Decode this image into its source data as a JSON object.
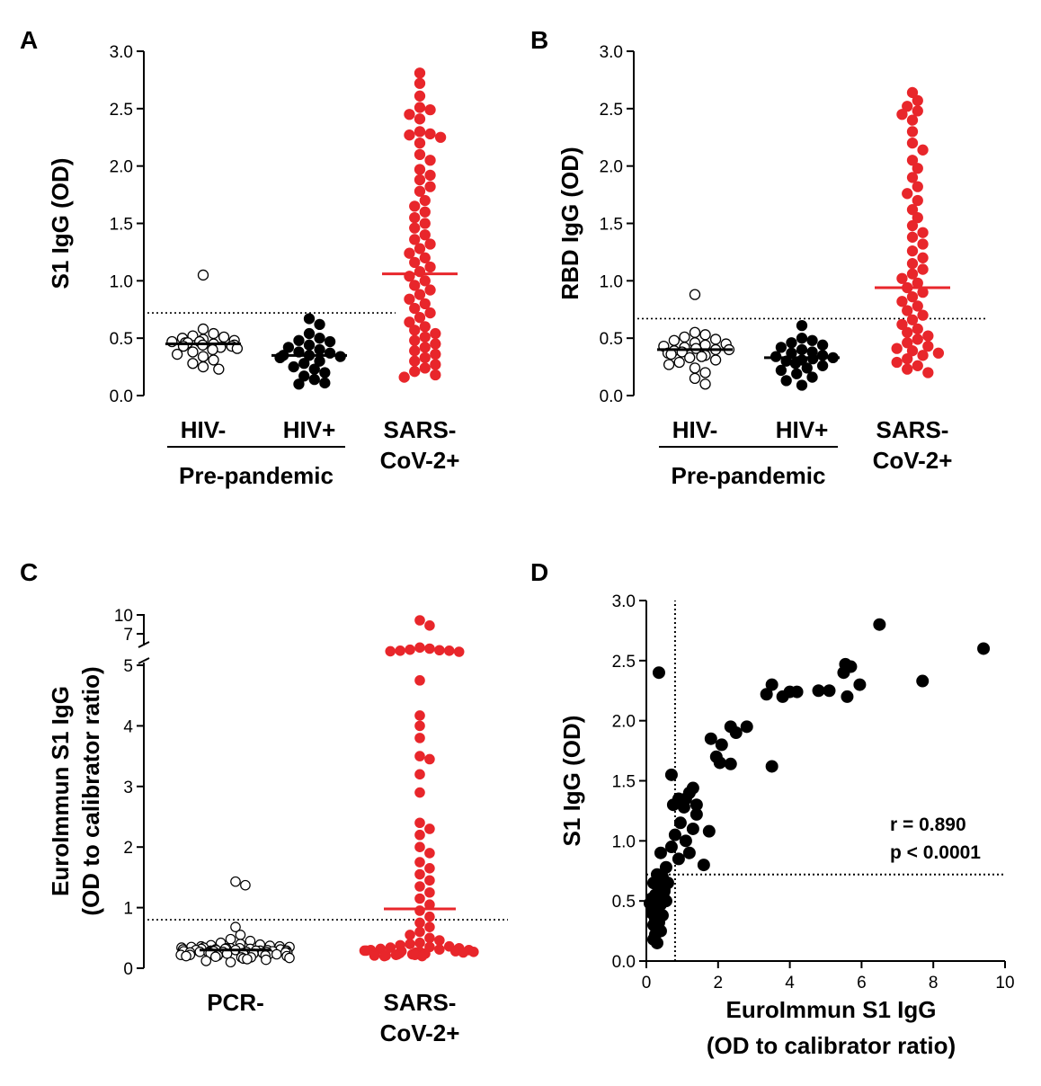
{
  "chart_data": [
    {
      "panel": "A",
      "type": "scatter",
      "ylabel": "S1 IgG (OD)",
      "ylim": [
        0,
        3.0
      ],
      "yticks": [
        0.0,
        0.5,
        1.0,
        1.5,
        2.0,
        2.5,
        3.0
      ],
      "ytick_labels": [
        "0.0",
        "0.5",
        "1.0",
        "1.5",
        "2.0",
        "2.5",
        "3.0"
      ],
      "threshold": 0.72,
      "group_label": "Pre-pandemic",
      "groups": [
        {
          "name": "HIV-",
          "name_lines": [
            "HIV-"
          ],
          "filled": false,
          "color": "#000000",
          "median": 0.45,
          "values": [
            1.05,
            0.58,
            0.54,
            0.52,
            0.51,
            0.5,
            0.49,
            0.48,
            0.47,
            0.47,
            0.46,
            0.46,
            0.45,
            0.44,
            0.44,
            0.43,
            0.43,
            0.42,
            0.41,
            0.4,
            0.38,
            0.36,
            0.34,
            0.31,
            0.28,
            0.25,
            0.23
          ]
        },
        {
          "name": "HIV+",
          "name_lines": [
            "HIV+"
          ],
          "filled": true,
          "color": "#000000",
          "median": 0.35,
          "values": [
            0.67,
            0.62,
            0.54,
            0.5,
            0.48,
            0.47,
            0.44,
            0.42,
            0.4,
            0.38,
            0.37,
            0.35,
            0.35,
            0.34,
            0.33,
            0.3,
            0.28,
            0.25,
            0.23,
            0.2,
            0.17,
            0.14,
            0.11,
            0.1
          ]
        },
        {
          "name": "SARS-CoV-2+",
          "name_lines": [
            "SARS-",
            "CoV-2+"
          ],
          "filled": true,
          "color": "#e8262b",
          "median": 1.06,
          "values": [
            2.81,
            2.72,
            2.61,
            2.51,
            2.49,
            2.45,
            2.41,
            2.3,
            2.28,
            2.27,
            2.25,
            2.2,
            2.1,
            2.05,
            1.97,
            1.92,
            1.88,
            1.82,
            1.78,
            1.7,
            1.65,
            1.6,
            1.55,
            1.5,
            1.46,
            1.4,
            1.36,
            1.32,
            1.28,
            1.24,
            1.2,
            1.16,
            1.12,
            1.08,
            1.04,
            1.0,
            0.96,
            0.92,
            0.88,
            0.84,
            0.8,
            0.76,
            0.72,
            0.68,
            0.64,
            0.6,
            0.57,
            0.54,
            0.51,
            0.48,
            0.45,
            0.42,
            0.39,
            0.36,
            0.33,
            0.3,
            0.27,
            0.24,
            0.21,
            0.18,
            0.16
          ]
        }
      ]
    },
    {
      "panel": "B",
      "type": "scatter",
      "ylabel": "RBD IgG (OD)",
      "ylim": [
        0,
        3.0
      ],
      "yticks": [
        0.0,
        0.5,
        1.0,
        1.5,
        2.0,
        2.5,
        3.0
      ],
      "ytick_labels": [
        "0.0",
        "0.5",
        "1.0",
        "1.5",
        "2.0",
        "2.5",
        "3.0"
      ],
      "threshold": 0.67,
      "group_label": "Pre-pandemic",
      "groups": [
        {
          "name": "HIV-",
          "name_lines": [
            "HIV-"
          ],
          "filled": false,
          "color": "#000000",
          "median": 0.4,
          "values": [
            0.88,
            0.55,
            0.53,
            0.51,
            0.49,
            0.48,
            0.46,
            0.45,
            0.44,
            0.43,
            0.42,
            0.41,
            0.4,
            0.4,
            0.39,
            0.38,
            0.37,
            0.36,
            0.35,
            0.34,
            0.33,
            0.31,
            0.29,
            0.27,
            0.24,
            0.2,
            0.15,
            0.1
          ]
        },
        {
          "name": "HIV+",
          "name_lines": [
            "HIV+"
          ],
          "filled": true,
          "color": "#000000",
          "median": 0.33,
          "values": [
            0.61,
            0.5,
            0.48,
            0.46,
            0.44,
            0.42,
            0.4,
            0.38,
            0.37,
            0.35,
            0.34,
            0.33,
            0.32,
            0.31,
            0.3,
            0.28,
            0.26,
            0.24,
            0.22,
            0.19,
            0.16,
            0.13,
            0.09
          ]
        },
        {
          "name": "SARS-CoV-2+",
          "name_lines": [
            "SARS-",
            "CoV-2+"
          ],
          "filled": true,
          "color": "#e8262b",
          "median": 0.94,
          "values": [
            2.64,
            2.57,
            2.52,
            2.48,
            2.45,
            2.4,
            2.3,
            2.2,
            2.14,
            2.05,
            1.98,
            1.9,
            1.82,
            1.76,
            1.7,
            1.62,
            1.55,
            1.48,
            1.42,
            1.38,
            1.32,
            1.26,
            1.2,
            1.15,
            1.1,
            1.06,
            1.02,
            0.98,
            0.94,
            0.9,
            0.86,
            0.82,
            0.78,
            0.74,
            0.7,
            0.66,
            0.62,
            0.58,
            0.55,
            0.52,
            0.49,
            0.46,
            0.43,
            0.41,
            0.39,
            0.37,
            0.35,
            0.32,
            0.29,
            0.26,
            0.23,
            0.2
          ]
        }
      ]
    },
    {
      "panel": "C",
      "type": "scatter",
      "ylabel": [
        "EuroImmun S1 IgG",
        "(OD to calibrator ratio)"
      ],
      "ylim": [
        0,
        10
      ],
      "axis_break": [
        5,
        7
      ],
      "yticks": [
        0,
        1,
        2,
        3,
        4,
        5,
        7,
        10
      ],
      "ytick_labels": [
        "0",
        "1",
        "2",
        "3",
        "4",
        "5",
        "7",
        "10"
      ],
      "threshold": 0.8,
      "groups": [
        {
          "name": "PCR-",
          "name_lines": [
            "PCR-"
          ],
          "filled": false,
          "color": "#000000",
          "median": 0.3,
          "values": [
            1.43,
            1.37,
            0.68,
            0.55,
            0.48,
            0.45,
            0.42,
            0.4,
            0.39,
            0.38,
            0.37,
            0.36,
            0.36,
            0.35,
            0.35,
            0.34,
            0.34,
            0.33,
            0.33,
            0.33,
            0.32,
            0.32,
            0.32,
            0.31,
            0.31,
            0.31,
            0.3,
            0.3,
            0.3,
            0.3,
            0.29,
            0.29,
            0.29,
            0.29,
            0.28,
            0.28,
            0.28,
            0.28,
            0.27,
            0.27,
            0.27,
            0.27,
            0.26,
            0.26,
            0.26,
            0.26,
            0.25,
            0.25,
            0.25,
            0.24,
            0.24,
            0.24,
            0.23,
            0.23,
            0.23,
            0.22,
            0.22,
            0.21,
            0.21,
            0.2,
            0.2,
            0.19,
            0.18,
            0.18,
            0.17,
            0.16,
            0.15,
            0.14,
            0.12,
            0.1
          ]
        },
        {
          "name": "SARS-CoV-2+",
          "name_lines": [
            "SARS-",
            "CoV-2+"
          ],
          "filled": true,
          "color": "#e8262b",
          "median": 0.98,
          "values": [
            9.4,
            8.9,
            6.8,
            6.7,
            6.6,
            6.55,
            6.5,
            6.5,
            6.45,
            6.4,
            4.75,
            4.17,
            4.0,
            3.8,
            3.5,
            3.45,
            3.2,
            2.9,
            2.4,
            2.3,
            2.2,
            2.0,
            1.9,
            1.75,
            1.65,
            1.55,
            1.45,
            1.35,
            1.25,
            1.15,
            1.05,
            0.95,
            0.85,
            0.75,
            0.68,
            0.6,
            0.55,
            0.5,
            0.46,
            0.42,
            0.4,
            0.38,
            0.36,
            0.35,
            0.34,
            0.33,
            0.32,
            0.31,
            0.3,
            0.3,
            0.29,
            0.29,
            0.28,
            0.28,
            0.27,
            0.27,
            0.26,
            0.26,
            0.25,
            0.25,
            0.24,
            0.24,
            0.23,
            0.23,
            0.22,
            0.22,
            0.21,
            0.21,
            0.2,
            0.2
          ]
        }
      ]
    },
    {
      "panel": "D",
      "type": "scatter",
      "xlabel": [
        "EuroImmun S1 IgG",
        "(OD to calibrator ratio)"
      ],
      "ylabel": "S1 IgG (OD)",
      "xlim": [
        0,
        10
      ],
      "ylim": [
        0,
        3.0
      ],
      "xticks": [
        0,
        2,
        4,
        6,
        8,
        10
      ],
      "xtick_labels": [
        "0",
        "2",
        "4",
        "6",
        "8",
        "10"
      ],
      "yticks": [
        0.0,
        0.5,
        1.0,
        1.5,
        2.0,
        2.5,
        3.0
      ],
      "ytick_labels": [
        "0.0",
        "0.5",
        "1.0",
        "1.5",
        "2.0",
        "2.5",
        "3.0"
      ],
      "x_threshold": 0.8,
      "y_threshold": 0.72,
      "annotation": [
        "r = 0.890",
        "p < 0.0001"
      ],
      "points": [
        [
          6.5,
          2.8
        ],
        [
          9.4,
          2.6
        ],
        [
          7.7,
          2.33
        ],
        [
          5.55,
          2.47
        ],
        [
          5.7,
          2.45
        ],
        [
          5.5,
          2.4
        ],
        [
          5.95,
          2.3
        ],
        [
          5.6,
          2.2
        ],
        [
          4.8,
          2.25
        ],
        [
          5.1,
          2.25
        ],
        [
          4.0,
          2.24
        ],
        [
          4.2,
          2.24
        ],
        [
          3.8,
          2.2
        ],
        [
          3.5,
          2.3
        ],
        [
          3.35,
          2.22
        ],
        [
          2.8,
          1.95
        ],
        [
          2.35,
          1.95
        ],
        [
          2.5,
          1.9
        ],
        [
          1.8,
          1.85
        ],
        [
          2.1,
          1.8
        ],
        [
          1.95,
          1.7
        ],
        [
          2.05,
          1.65
        ],
        [
          2.35,
          1.64
        ],
        [
          3.5,
          1.62
        ],
        [
          0.35,
          2.4
        ],
        [
          0.7,
          1.55
        ],
        [
          1.3,
          1.44
        ],
        [
          1.2,
          1.4
        ],
        [
          1.1,
          1.35
        ],
        [
          0.9,
          1.35
        ],
        [
          1.4,
          1.3
        ],
        [
          0.75,
          1.3
        ],
        [
          1.05,
          1.28
        ],
        [
          1.4,
          1.22
        ],
        [
          0.95,
          1.15
        ],
        [
          1.3,
          1.1
        ],
        [
          1.75,
          1.08
        ],
        [
          0.8,
          1.05
        ],
        [
          1.1,
          1.0
        ],
        [
          0.7,
          0.95
        ],
        [
          1.2,
          0.9
        ],
        [
          0.4,
          0.9
        ],
        [
          0.9,
          0.85
        ],
        [
          1.6,
          0.8
        ],
        [
          0.55,
          0.78
        ],
        [
          0.3,
          0.72
        ],
        [
          0.45,
          0.7
        ],
        [
          0.2,
          0.65
        ],
        [
          0.35,
          0.62
        ],
        [
          0.5,
          0.58
        ],
        [
          0.25,
          0.55
        ],
        [
          0.15,
          0.52
        ],
        [
          0.3,
          0.5
        ],
        [
          0.1,
          0.48
        ],
        [
          0.4,
          0.47
        ],
        [
          0.2,
          0.45
        ],
        [
          0.3,
          0.42
        ],
        [
          0.15,
          0.4
        ],
        [
          0.45,
          0.38
        ],
        [
          0.25,
          0.35
        ],
        [
          0.35,
          0.32
        ],
        [
          0.2,
          0.3
        ],
        [
          0.3,
          0.28
        ],
        [
          0.4,
          0.25
        ],
        [
          0.25,
          0.22
        ],
        [
          0.2,
          0.18
        ],
        [
          0.3,
          0.15
        ],
        [
          0.5,
          0.6
        ],
        [
          0.6,
          0.65
        ],
        [
          0.55,
          0.5
        ]
      ]
    }
  ]
}
